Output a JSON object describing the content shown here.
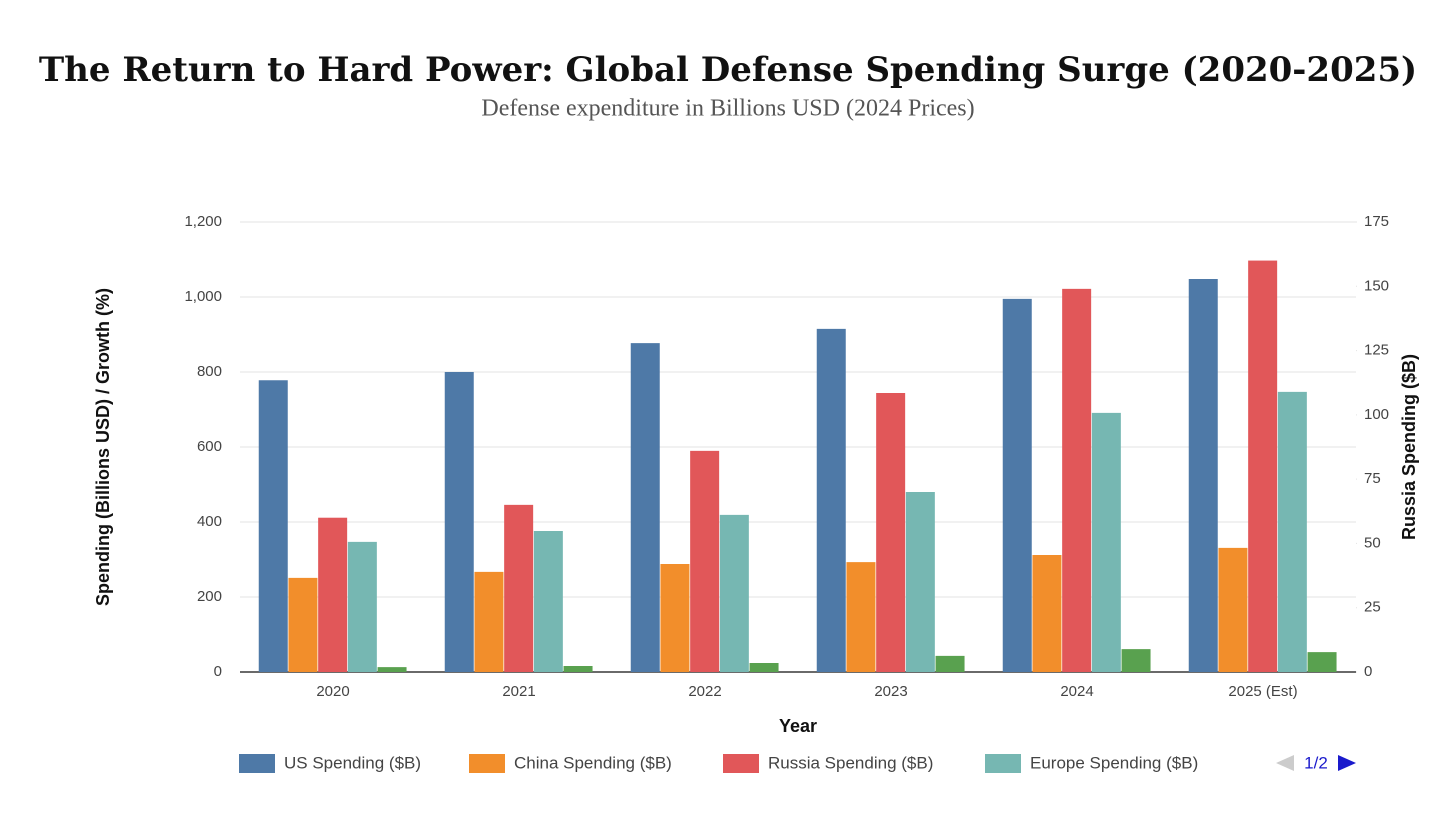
{
  "chart_data": {
    "type": "bar",
    "title": "The Return to Hard Power: Global Defense Spending Surge (2020-2025)",
    "subtitle": "Defense expenditure in Billions USD (2024 Prices)",
    "xlabel": "Year",
    "ylabel": "Spending (Billions USD) / Growth (%)",
    "y2label": "Russia Spending ($B)",
    "categories": [
      "2020",
      "2021",
      "2022",
      "2023",
      "2024",
      "2025 (Est)"
    ],
    "series": [
      {
        "name": "US Spending ($B)",
        "color": "#4e79a7",
        "values": [
          778,
          800,
          877,
          915,
          995,
          1048
        ]
      },
      {
        "name": "China Spending ($B)",
        "color": "#f28e2b",
        "values": [
          251,
          267,
          288,
          293,
          312,
          331
        ]
      },
      {
        "name": "Russia Spending ($B)",
        "color": "#e15759",
        "axis": "y2",
        "values": [
          60,
          65,
          86,
          108.5,
          149,
          160
        ]
      },
      {
        "name": "Europe Spending ($B)",
        "color": "#76b7b2",
        "values": [
          347,
          376,
          419,
          480,
          691,
          747
        ]
      },
      {
        "color": "#59a14f",
        "values": [
          13,
          16,
          24,
          43,
          61,
          53
        ]
      }
    ],
    "ylim": [
      0,
      1200
    ],
    "yticks": [
      0,
      200,
      400,
      600,
      800,
      {
        "value": 1000,
        "label": "1,000"
      },
      {
        "value": 1200,
        "label": "1,200"
      }
    ],
    "y2lim": [
      0,
      175
    ],
    "y2ticks": [
      0,
      25,
      50,
      75,
      100,
      125,
      150,
      175
    ],
    "grid": true,
    "legend": "bottom",
    "legend_page": "1/2"
  }
}
